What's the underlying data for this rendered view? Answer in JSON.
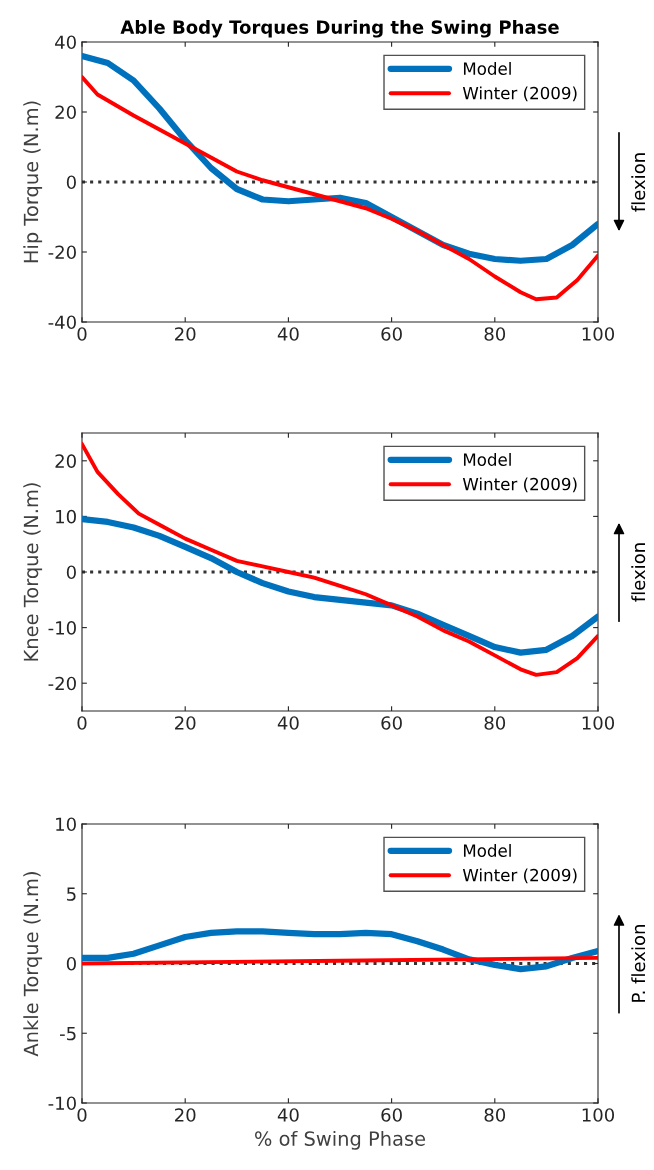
{
  "chart_data": [
    {
      "type": "line",
      "title": "Able Body Torques During the Swing Phase",
      "ylabel": "Hip Torque (N.m)",
      "xlim": [
        0,
        100
      ],
      "xticks": [
        0,
        20,
        40,
        60,
        80,
        100
      ],
      "ylim": [
        -40,
        40
      ],
      "yticks": [
        -40,
        -20,
        0,
        20,
        40
      ],
      "legend": "top right",
      "grid": false,
      "series": [
        {
          "name": "Model",
          "color": "#0072bd",
          "x": [
            0,
            5,
            10,
            15,
            20,
            25,
            30,
            35,
            40,
            45,
            50,
            55,
            60,
            65,
            70,
            75,
            80,
            85,
            90,
            95,
            100
          ],
          "values": [
            36,
            34,
            29,
            21,
            12,
            4,
            -2,
            -5,
            -5.5,
            -5,
            -4.5,
            -6,
            -10,
            -14,
            -18,
            -20.5,
            -22,
            -22.5,
            -22,
            -18,
            -12
          ]
        },
        {
          "name": "Winter (2009)",
          "color": "#ff0000",
          "x": [
            0,
            3,
            10,
            20,
            25,
            30,
            35,
            40,
            45,
            50,
            55,
            60,
            65,
            70,
            75,
            80,
            85,
            88,
            92,
            96,
            100
          ],
          "values": [
            30,
            25,
            19,
            11,
            7,
            3,
            0.5,
            -1.5,
            -3.5,
            -5.5,
            -7.5,
            -10.5,
            -14,
            -18,
            -22,
            -27,
            -31.5,
            -33.5,
            -33,
            -28,
            -21
          ]
        }
      ],
      "ref_lines": [
        {
          "axis": "y",
          "value": 0,
          "color": "#333333",
          "line_style": "dotted"
        }
      ],
      "annotations": [
        "flexion"
      ]
    },
    {
      "type": "line",
      "ylabel": "Knee Torque (N.m)",
      "xlim": [
        0,
        100
      ],
      "xticks": [
        0,
        20,
        40,
        60,
        80,
        100
      ],
      "ylim": [
        -25,
        25
      ],
      "yticks": [
        -20,
        -10,
        0,
        10,
        20
      ],
      "legend": "top right",
      "grid": false,
      "series": [
        {
          "name": "Model",
          "color": "#0072bd",
          "x": [
            0,
            5,
            10,
            15,
            20,
            25,
            30,
            35,
            40,
            45,
            50,
            55,
            60,
            65,
            70,
            75,
            80,
            85,
            90,
            95,
            100
          ],
          "values": [
            9.5,
            9,
            8,
            6.5,
            4.5,
            2.5,
            0,
            -2,
            -3.5,
            -4.5,
            -5,
            -5.5,
            -6,
            -7.5,
            -9.5,
            -11.5,
            -13.5,
            -14.5,
            -14,
            -11.5,
            -8
          ]
        },
        {
          "name": "Winter (2009)",
          "color": "#ff0000",
          "x": [
            0,
            3,
            7,
            11,
            15,
            20,
            25,
            30,
            35,
            40,
            45,
            50,
            55,
            60,
            65,
            70,
            75,
            80,
            85,
            88,
            92,
            96,
            100
          ],
          "values": [
            23,
            18,
            14,
            10.5,
            8.5,
            6,
            4,
            2,
            1,
            0,
            -1,
            -2.5,
            -4,
            -6,
            -8,
            -10.5,
            -12.5,
            -15,
            -17.5,
            -18.5,
            -18,
            -15.5,
            -11.5
          ]
        }
      ],
      "ref_lines": [
        {
          "axis": "y",
          "value": 0,
          "color": "#333333",
          "line_style": "dotted"
        }
      ],
      "annotations": [
        "flexion"
      ]
    },
    {
      "type": "line",
      "xlabel": "% of Swing Phase",
      "ylabel": "Ankle Torque (N.m)",
      "xlim": [
        0,
        100
      ],
      "xticks": [
        0,
        20,
        40,
        60,
        80,
        100
      ],
      "ylim": [
        -10,
        10
      ],
      "yticks": [
        -10,
        -5,
        0,
        5,
        10
      ],
      "legend": "top right",
      "grid": false,
      "series": [
        {
          "name": "Model",
          "color": "#0072bd",
          "x": [
            0,
            5,
            10,
            15,
            20,
            25,
            30,
            35,
            40,
            45,
            50,
            55,
            60,
            65,
            70,
            75,
            80,
            85,
            90,
            95,
            100
          ],
          "values": [
            0.4,
            0.4,
            0.7,
            1.3,
            1.9,
            2.2,
            2.3,
            2.3,
            2.2,
            2.1,
            2.1,
            2.2,
            2.1,
            1.6,
            1.0,
            0.3,
            -0.1,
            -0.4,
            -0.2,
            0.4,
            0.9
          ]
        },
        {
          "name": "Winter (2009)",
          "color": "#ff0000",
          "x": [
            0,
            50,
            100
          ],
          "values": [
            0,
            0.2,
            0.4
          ]
        }
      ],
      "ref_lines": [
        {
          "axis": "y",
          "value": 0,
          "color": "#333333",
          "line_style": "dotted"
        }
      ],
      "annotations": [
        "P. flexion"
      ]
    }
  ]
}
